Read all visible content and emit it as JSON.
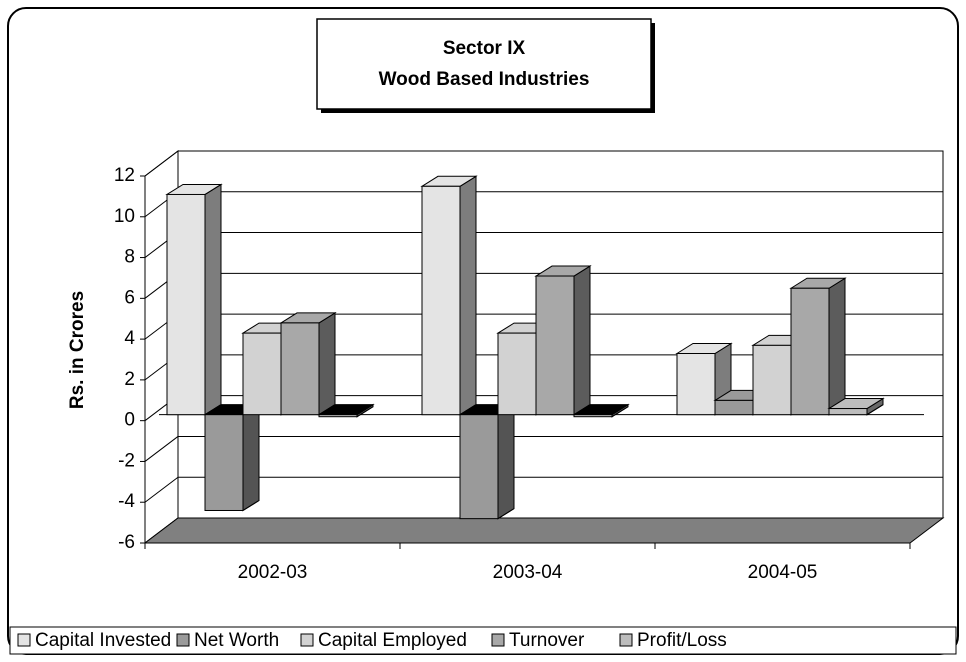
{
  "chart_data": {
    "type": "bar3d",
    "title": [
      "Sector IX",
      "Wood Based Industries"
    ],
    "y_label": "Rs. in Crores",
    "categories": [
      "2002-03",
      "2003-04",
      "2004-05"
    ],
    "series": [
      {
        "name": "Capital Invested",
        "color": "#e4e4e4",
        "values": [
          10.8,
          11.2,
          3.0
        ]
      },
      {
        "name": "Net Worth",
        "color": "#9a9a9a",
        "values": [
          -4.7,
          -5.1,
          0.7
        ]
      },
      {
        "name": "Capital Employed",
        "color": "#d2d2d2",
        "values": [
          4.0,
          4.0,
          3.4
        ]
      },
      {
        "name": "Turnover",
        "color": "#a8a8a8",
        "values": [
          4.5,
          6.8,
          6.2
        ]
      },
      {
        "name": "Profit/Loss",
        "color": "#bdbdbd",
        "values": [
          -0.1,
          -0.1,
          0.3
        ]
      }
    ],
    "ylim": [
      -6,
      12
    ],
    "yticks": [
      -6,
      -4,
      -2,
      0,
      2,
      4,
      6,
      8,
      10,
      12
    ],
    "grid": true,
    "legend": "bottom"
  }
}
